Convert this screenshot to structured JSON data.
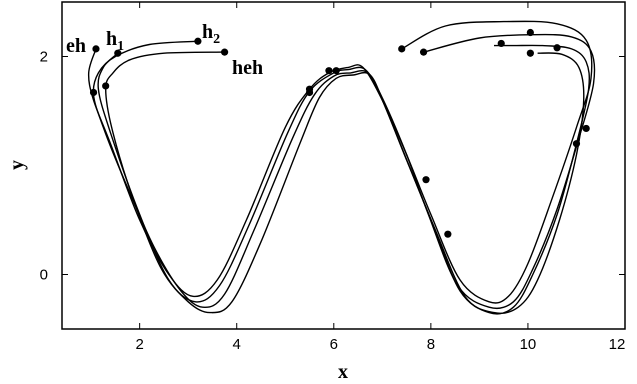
{
  "chart_data": {
    "type": "line",
    "title": "",
    "xlabel": "x",
    "ylabel": "y",
    "xlim": [
      0.4,
      12
    ],
    "ylim": [
      -0.5,
      2.5
    ],
    "x_ticks": [
      2,
      4,
      6,
      8,
      10,
      12
    ],
    "y_ticks": [
      0,
      2
    ],
    "grid": false,
    "legend": "none",
    "series": [
      {
        "label_main": "eh",
        "label_sub": "",
        "x": [
          1.1,
          0.95,
          1.05,
          1.4,
          2.0,
          2.6,
          3.1,
          3.6,
          4.2,
          5.0,
          5.5,
          5.9,
          6.3,
          6.6,
          7.0,
          7.5,
          8.0,
          8.6,
          9.2,
          9.6,
          10.0,
          10.5,
          11.0,
          11.3,
          11.2,
          10.6,
          9.5,
          8.3,
          7.4
        ],
        "y": [
          2.07,
          1.85,
          1.6,
          1.2,
          0.5,
          0.0,
          -0.2,
          -0.05,
          0.5,
          1.35,
          1.7,
          1.85,
          1.9,
          1.9,
          1.6,
          1.1,
          0.55,
          -0.05,
          -0.25,
          -0.2,
          0.1,
          0.7,
          1.35,
          1.8,
          2.15,
          2.3,
          2.32,
          2.28,
          2.07
        ]
      },
      {
        "label_main": "h",
        "label_sub": "1",
        "x": [
          1.55,
          1.25,
          1.15,
          1.4,
          2.0,
          2.6,
          3.15,
          3.65,
          4.25,
          5.05,
          5.5,
          6.0,
          6.3,
          6.65,
          7.0,
          7.5,
          7.95,
          8.55,
          9.2,
          9.7,
          10.1,
          10.6,
          11.05,
          11.35,
          11.3,
          10.9,
          10.1,
          9.0,
          7.85
        ],
        "y": [
          2.03,
          1.9,
          1.7,
          1.3,
          0.55,
          -0.05,
          -0.25,
          -0.1,
          0.45,
          1.3,
          1.68,
          1.85,
          1.88,
          1.88,
          1.62,
          1.1,
          0.55,
          -0.1,
          -0.3,
          -0.25,
          0.05,
          0.6,
          1.25,
          1.75,
          2.05,
          2.18,
          2.2,
          2.17,
          2.04
        ]
      },
      {
        "label_main": "h",
        "label_sub": "2",
        "x": [
          3.2,
          2.2,
          1.5,
          1.15,
          1.05,
          1.25,
          1.7,
          2.3,
          2.85,
          3.3,
          3.75,
          4.35,
          5.15,
          5.6,
          6.0,
          6.35,
          6.7,
          7.0,
          7.5,
          8.05,
          8.6,
          9.2,
          9.7,
          10.1,
          10.6,
          11.0,
          11.25,
          11.2,
          10.9,
          10.3,
          9.7,
          9.3
        ],
        "y": [
          2.14,
          2.11,
          2.0,
          1.85,
          1.65,
          1.35,
          0.85,
          0.25,
          -0.15,
          -0.3,
          -0.18,
          0.4,
          1.25,
          1.65,
          1.82,
          1.85,
          1.85,
          1.6,
          1.05,
          0.45,
          -0.15,
          -0.35,
          -0.3,
          0.0,
          0.55,
          1.2,
          1.7,
          1.95,
          2.07,
          2.1,
          2.1,
          2.1
        ]
      },
      {
        "label_main": "heh",
        "label_sub": "",
        "x": [
          3.75,
          2.5,
          1.8,
          1.45,
          1.3,
          1.45,
          1.9,
          2.45,
          3.0,
          3.45,
          3.9,
          4.5,
          5.3,
          5.7,
          6.05,
          6.4,
          6.75,
          7.05,
          7.55,
          8.1,
          8.7,
          9.3,
          9.8,
          10.2,
          10.65,
          11.0,
          11.15,
          11.05,
          10.7,
          10.2
        ],
        "y": [
          2.04,
          2.03,
          1.97,
          1.85,
          1.7,
          1.3,
          0.65,
          0.05,
          -0.25,
          -0.35,
          -0.25,
          0.3,
          1.2,
          1.62,
          1.8,
          1.83,
          1.83,
          1.55,
          1.0,
          0.4,
          -0.2,
          -0.35,
          -0.3,
          -0.05,
          0.5,
          1.1,
          1.6,
          1.9,
          2.02,
          2.03
        ]
      }
    ],
    "markers": [
      {
        "x": 1.1,
        "y": 2.07
      },
      {
        "x": 1.55,
        "y": 2.03
      },
      {
        "x": 3.2,
        "y": 2.14
      },
      {
        "x": 3.75,
        "y": 2.04
      },
      {
        "x": 1.05,
        "y": 1.67
      },
      {
        "x": 1.3,
        "y": 1.73
      },
      {
        "x": 5.5,
        "y": 1.7
      },
      {
        "x": 5.5,
        "y": 1.67
      },
      {
        "x": 5.9,
        "y": 1.87
      },
      {
        "x": 6.05,
        "y": 1.87
      },
      {
        "x": 7.9,
        "y": 0.87
      },
      {
        "x": 8.35,
        "y": 0.37
      },
      {
        "x": 7.4,
        "y": 2.07
      },
      {
        "x": 7.85,
        "y": 2.04
      },
      {
        "x": 9.45,
        "y": 2.12
      },
      {
        "x": 10.05,
        "y": 2.22
      },
      {
        "x": 10.05,
        "y": 2.03
      },
      {
        "x": 10.6,
        "y": 2.08
      },
      {
        "x": 11.2,
        "y": 1.34
      },
      {
        "x": 11.0,
        "y": 1.2
      }
    ]
  }
}
